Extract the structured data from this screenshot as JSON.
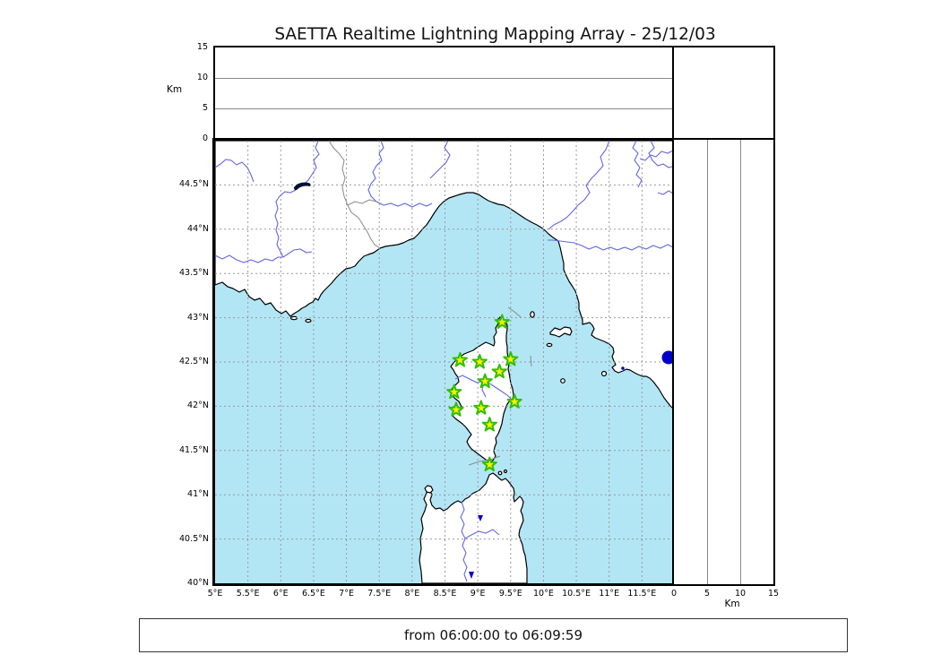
{
  "title": "SAETTA Realtime Lightning Mapping Array - 25/12/03",
  "status_text": "from 06:00:00 to 06:09:59",
  "colors": {
    "sea": "#b3e6f4",
    "land": "#ffffff",
    "coast": "#000000",
    "river": "#6666e0",
    "border": "#888888",
    "grid": "#999999",
    "lake": "#0000cc",
    "dark_lake": "#001133",
    "star_fill": "#ffee00",
    "star_edge": "#2fbf00"
  },
  "map": {
    "lon_min": 5,
    "lon_max": 12,
    "lat_min": 40,
    "lat_max": 45,
    "grid_step_deg": 0.5,
    "lon_ticks": [
      {
        "value": 5,
        "label": "5°E"
      },
      {
        "value": 5.5,
        "label": "5.5°E"
      },
      {
        "value": 6,
        "label": "6°E"
      },
      {
        "value": 6.5,
        "label": "6.5°E"
      },
      {
        "value": 7,
        "label": "7°E"
      },
      {
        "value": 7.5,
        "label": "7.5°E"
      },
      {
        "value": 8,
        "label": "8°E"
      },
      {
        "value": 8.5,
        "label": "8.5°E"
      },
      {
        "value": 9,
        "label": "9°E"
      },
      {
        "value": 9.5,
        "label": "9.5°E"
      },
      {
        "value": 10,
        "label": "10°E"
      },
      {
        "value": 10.5,
        "label": "10.5°E"
      },
      {
        "value": 11,
        "label": "11°E"
      },
      {
        "value": 11.5,
        "label": "11.5°E"
      }
    ],
    "lat_ticks": [
      {
        "value": 40,
        "label": "40°N"
      },
      {
        "value": 40.5,
        "label": "40.5°N"
      },
      {
        "value": 41,
        "label": "41°N"
      },
      {
        "value": 41.5,
        "label": "41.5°N"
      },
      {
        "value": 42,
        "label": "42°N"
      },
      {
        "value": 42.5,
        "label": "42.5°N"
      },
      {
        "value": 43,
        "label": "43°N"
      },
      {
        "value": 43.5,
        "label": "43.5°N"
      },
      {
        "value": 44,
        "label": "44°N"
      },
      {
        "value": 44.5,
        "label": "44.5°N"
      }
    ]
  },
  "altitude_axes": {
    "unit_label": "Km",
    "km_min": 0,
    "km_max": 15,
    "ticks": [
      {
        "value": 0,
        "label": "0"
      },
      {
        "value": 5,
        "label": "5"
      },
      {
        "value": 10,
        "label": "10"
      },
      {
        "value": 15,
        "label": "15"
      }
    ],
    "gridline_values": [
      5,
      10
    ]
  },
  "stations": [
    {
      "lon": 9.37,
      "lat": 42.95
    },
    {
      "lon": 8.73,
      "lat": 42.52
    },
    {
      "lon": 9.03,
      "lat": 42.5
    },
    {
      "lon": 9.5,
      "lat": 42.53
    },
    {
      "lon": 9.33,
      "lat": 42.39
    },
    {
      "lon": 9.11,
      "lat": 42.28
    },
    {
      "lon": 8.64,
      "lat": 42.16
    },
    {
      "lon": 9.56,
      "lat": 42.05
    },
    {
      "lon": 9.05,
      "lat": 41.98
    },
    {
      "lon": 8.67,
      "lat": 41.96
    },
    {
      "lon": 9.18,
      "lat": 41.79
    },
    {
      "lon": 9.18,
      "lat": 41.34
    }
  ]
}
